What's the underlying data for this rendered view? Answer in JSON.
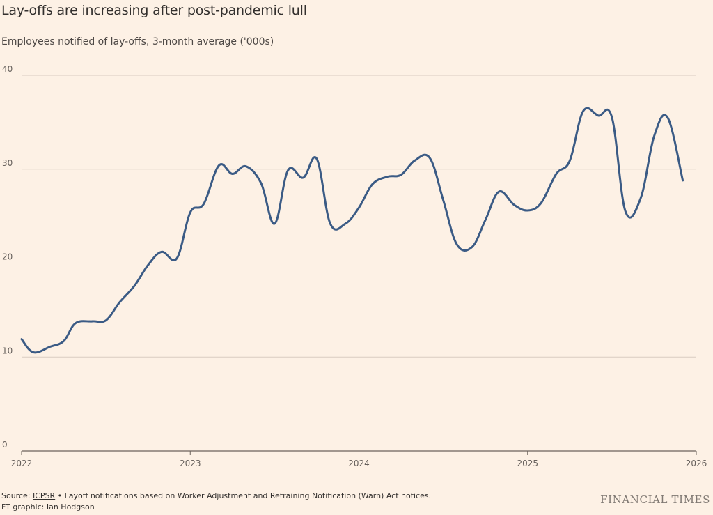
{
  "header": {
    "title": "Lay-offs are increasing after post-pandemic lull",
    "subtitle": "Employees notified of lay-offs, 3-month average ('000s)"
  },
  "footer": {
    "source_prefix": "Source: ",
    "source_link": "ICPSR",
    "source_note": " • Layoff notifications based on Worker Adjustment and Retraining Notification (Warn) Act notices.",
    "credit": "FT graphic: Ian Hodgson",
    "brand": "FINANCIAL TIMES"
  },
  "colors": {
    "background": "#FDF1E5",
    "line": "#3B5B85",
    "grid": "#D9CCC1",
    "text": "#33302E"
  },
  "chart_data": {
    "type": "line",
    "xlim": [
      2022.0,
      2026.0
    ],
    "ylim": [
      0,
      40
    ],
    "y_ticks": [
      0,
      10,
      20,
      30,
      40
    ],
    "x_ticks": [
      "2022",
      "2023",
      "2024",
      "2025",
      "2026"
    ],
    "grid": "horizontal",
    "series": [
      {
        "x": [
          2022.0,
          2022.07,
          2022.17,
          2022.25,
          2022.32,
          2022.42,
          2022.5,
          2022.58,
          2022.67,
          2022.75,
          2022.83,
          2022.92,
          2023.0,
          2023.08,
          2023.17,
          2023.25,
          2023.33,
          2023.42,
          2023.5,
          2023.58,
          2023.67,
          2023.75,
          2023.83,
          2023.92,
          2024.0,
          2024.08,
          2024.17,
          2024.25,
          2024.33,
          2024.42,
          2024.5,
          2024.58,
          2024.67,
          2024.75,
          2024.83,
          2024.92,
          2025.0,
          2025.08,
          2025.17,
          2025.25,
          2025.33,
          2025.42,
          2025.5,
          2025.58,
          2025.67,
          2025.75,
          2025.83,
          2025.92
        ],
        "values": [
          11.9,
          10.5,
          11.1,
          11.7,
          13.6,
          13.8,
          13.9,
          15.8,
          17.6,
          19.8,
          21.2,
          20.5,
          25.4,
          26.3,
          30.4,
          29.5,
          30.3,
          28.5,
          24.2,
          29.9,
          29.1,
          31.1,
          24.2,
          24.2,
          25.9,
          28.4,
          29.2,
          29.4,
          30.9,
          31.2,
          26.7,
          22.0,
          21.7,
          24.6,
          27.6,
          26.2,
          25.6,
          26.4,
          29.5,
          30.9,
          36.2,
          35.7,
          35.5,
          25.5,
          26.9,
          33.5,
          35.5,
          28.8
        ]
      }
    ]
  }
}
